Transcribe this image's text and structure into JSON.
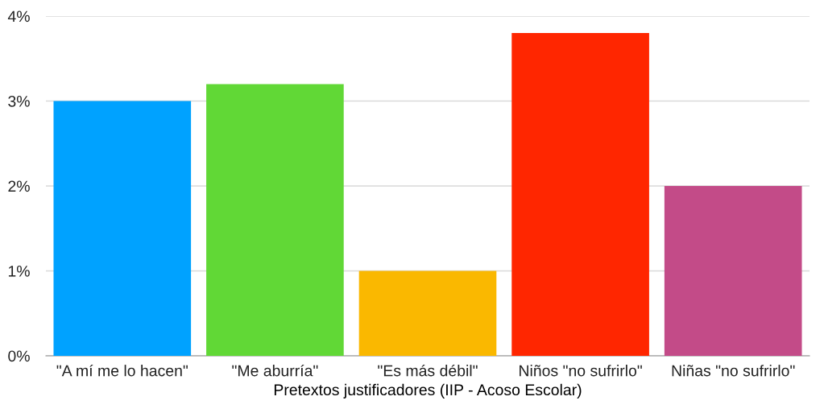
{
  "chart_data": {
    "type": "bar",
    "xlabel": "Pretextos justificadores (IIP - Acoso Escolar)",
    "categories": [
      "\"A mí me lo hacen\"",
      "\"Me aburría\"",
      "\"Es más débil\"",
      "Niños \"no sufrirlo\"",
      "Niñas \"no sufrirlo\""
    ],
    "values": [
      3.0,
      3.2,
      1.0,
      3.8,
      2.0
    ],
    "colors": [
      "#00a2ff",
      "#61d836",
      "#fab800",
      "#ff2600",
      "#c34b88"
    ],
    "ylim": [
      0,
      4
    ],
    "yticks": [
      {
        "value": 0,
        "label": "0%"
      },
      {
        "value": 1,
        "label": "1%"
      },
      {
        "value": 2,
        "label": "2%"
      },
      {
        "value": 3,
        "label": "3%"
      },
      {
        "value": 4,
        "label": "4%"
      }
    ],
    "grid": "y"
  }
}
